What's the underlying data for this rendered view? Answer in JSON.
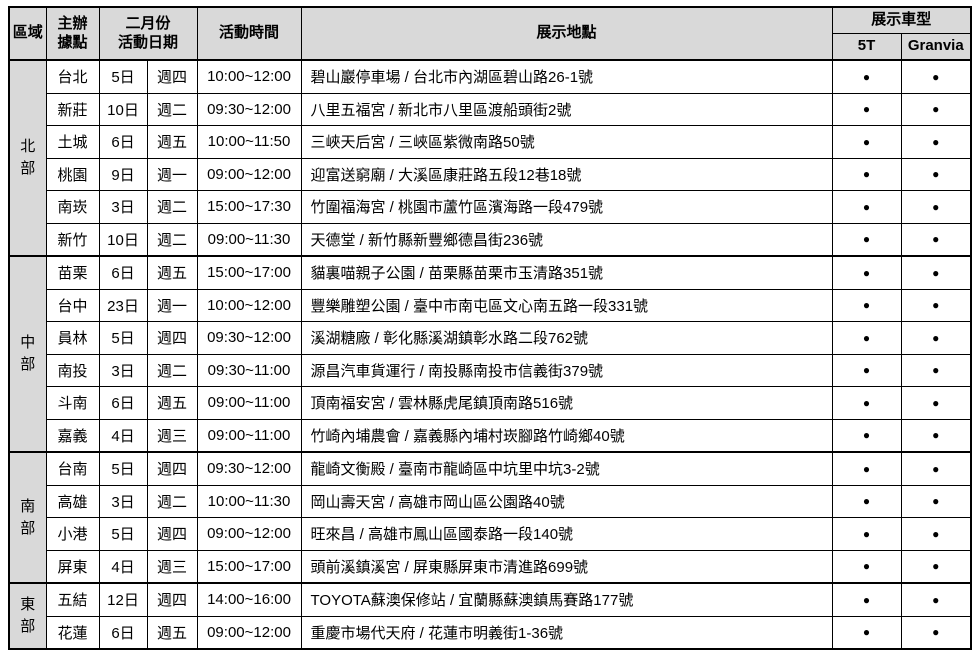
{
  "colors": {
    "header_bg": "#d9d9d9",
    "border": "#000000",
    "text": "#000000"
  },
  "table": {
    "header": {
      "region": "區域",
      "host_line1": "主辦",
      "host_line2": "據點",
      "date_line1": "二月份",
      "date_line2": "活動日期",
      "time": "活動時間",
      "location": "展示地點",
      "car_type": "展示車型",
      "car_5t": "5T",
      "car_granvia": "Granvia"
    },
    "groups": [
      {
        "region": "北部",
        "rows": [
          {
            "branch": "台北",
            "date": "5日",
            "weekday": "週四",
            "time": "10:00~12:00",
            "location": "碧山巖停車場 / 台北市內湖區碧山路26-1號",
            "t5": "●",
            "granvia": "●"
          },
          {
            "branch": "新莊",
            "date": "10日",
            "weekday": "週二",
            "time": "09:30~12:00",
            "location": "八里五福宮 / 新北市八里區渡船頭街2號",
            "t5": "●",
            "granvia": "●"
          },
          {
            "branch": "土城",
            "date": "6日",
            "weekday": "週五",
            "time": "10:00~11:50",
            "location": "三峽天后宮 / 三峽區紫微南路50號",
            "t5": "●",
            "granvia": "●"
          },
          {
            "branch": "桃園",
            "date": "9日",
            "weekday": "週一",
            "time": "09:00~12:00",
            "location": "迎富送窮廟 / 大溪區康莊路五段12巷18號",
            "t5": "●",
            "granvia": "●"
          },
          {
            "branch": "南崁",
            "date": "3日",
            "weekday": "週二",
            "time": "15:00~17:30",
            "location": "竹圍福海宮 / 桃園市蘆竹區濱海路一段479號",
            "t5": "●",
            "granvia": "●"
          },
          {
            "branch": "新竹",
            "date": "10日",
            "weekday": "週二",
            "time": "09:00~11:30",
            "location": "天德堂 / 新竹縣新豐鄉德昌街236號",
            "t5": "●",
            "granvia": "●"
          }
        ]
      },
      {
        "region": "中部",
        "rows": [
          {
            "branch": "苗栗",
            "date": "6日",
            "weekday": "週五",
            "time": "15:00~17:00",
            "location": "貓裏喵親子公園 / 苗栗縣苗栗市玉清路351號",
            "t5": "●",
            "granvia": "●"
          },
          {
            "branch": "台中",
            "date": "23日",
            "weekday": "週一",
            "time": "10:00~12:00",
            "location": "豐樂雕塑公園 / 臺中市南屯區文心南五路一段331號",
            "t5": "●",
            "granvia": "●"
          },
          {
            "branch": "員林",
            "date": "5日",
            "weekday": "週四",
            "time": "09:30~12:00",
            "location": "溪湖糖廠 / 彰化縣溪湖鎮彰水路二段762號",
            "t5": "●",
            "granvia": "●"
          },
          {
            "branch": "南投",
            "date": "3日",
            "weekday": "週二",
            "time": "09:30~11:00",
            "location": "源昌汽車貨運行 / 南投縣南投市信義街379號",
            "t5": "●",
            "granvia": "●"
          },
          {
            "branch": "斗南",
            "date": "6日",
            "weekday": "週五",
            "time": "09:00~11:00",
            "location": "頂南福安宮 / 雲林縣虎尾鎮頂南路516號",
            "t5": "●",
            "granvia": "●"
          },
          {
            "branch": "嘉義",
            "date": "4日",
            "weekday": "週三",
            "time": "09:00~11:00",
            "location": "竹崎內埔農會 / 嘉義縣內埔村崁腳路竹崎鄉40號",
            "t5": "●",
            "granvia": "●"
          }
        ]
      },
      {
        "region": "南部",
        "rows": [
          {
            "branch": "台南",
            "date": "5日",
            "weekday": "週四",
            "time": "09:30~12:00",
            "location": "龍崎文衡殿 / 臺南市龍崎區中坑里中坑3-2號",
            "t5": "●",
            "granvia": "●"
          },
          {
            "branch": "高雄",
            "date": "3日",
            "weekday": "週二",
            "time": "10:00~11:30",
            "location": "岡山壽天宮 / 高雄市岡山區公園路40號",
            "t5": "●",
            "granvia": "●"
          },
          {
            "branch": "小港",
            "date": "5日",
            "weekday": "週四",
            "time": "09:00~12:00",
            "location": "旺來昌 / 高雄市鳳山區國泰路一段140號",
            "t5": "●",
            "granvia": "●"
          },
          {
            "branch": "屏東",
            "date": "4日",
            "weekday": "週三",
            "time": "15:00~17:00",
            "location": "頭前溪鎮溪宮 / 屏東縣屏東市清進路699號",
            "t5": "●",
            "granvia": "●"
          }
        ]
      },
      {
        "region": "東部",
        "rows": [
          {
            "branch": "五結",
            "date": "12日",
            "weekday": "週四",
            "time": "14:00~16:00",
            "location": "TOYOTA蘇澳保修站 / 宜蘭縣蘇澳鎮馬賽路177號",
            "t5": "●",
            "granvia": "●"
          },
          {
            "branch": "花蓮",
            "date": "6日",
            "weekday": "週五",
            "time": "09:00~12:00",
            "location": "重慶市場代天府 / 花蓮市明義街1-36號",
            "t5": "●",
            "granvia": "●"
          }
        ]
      }
    ]
  }
}
